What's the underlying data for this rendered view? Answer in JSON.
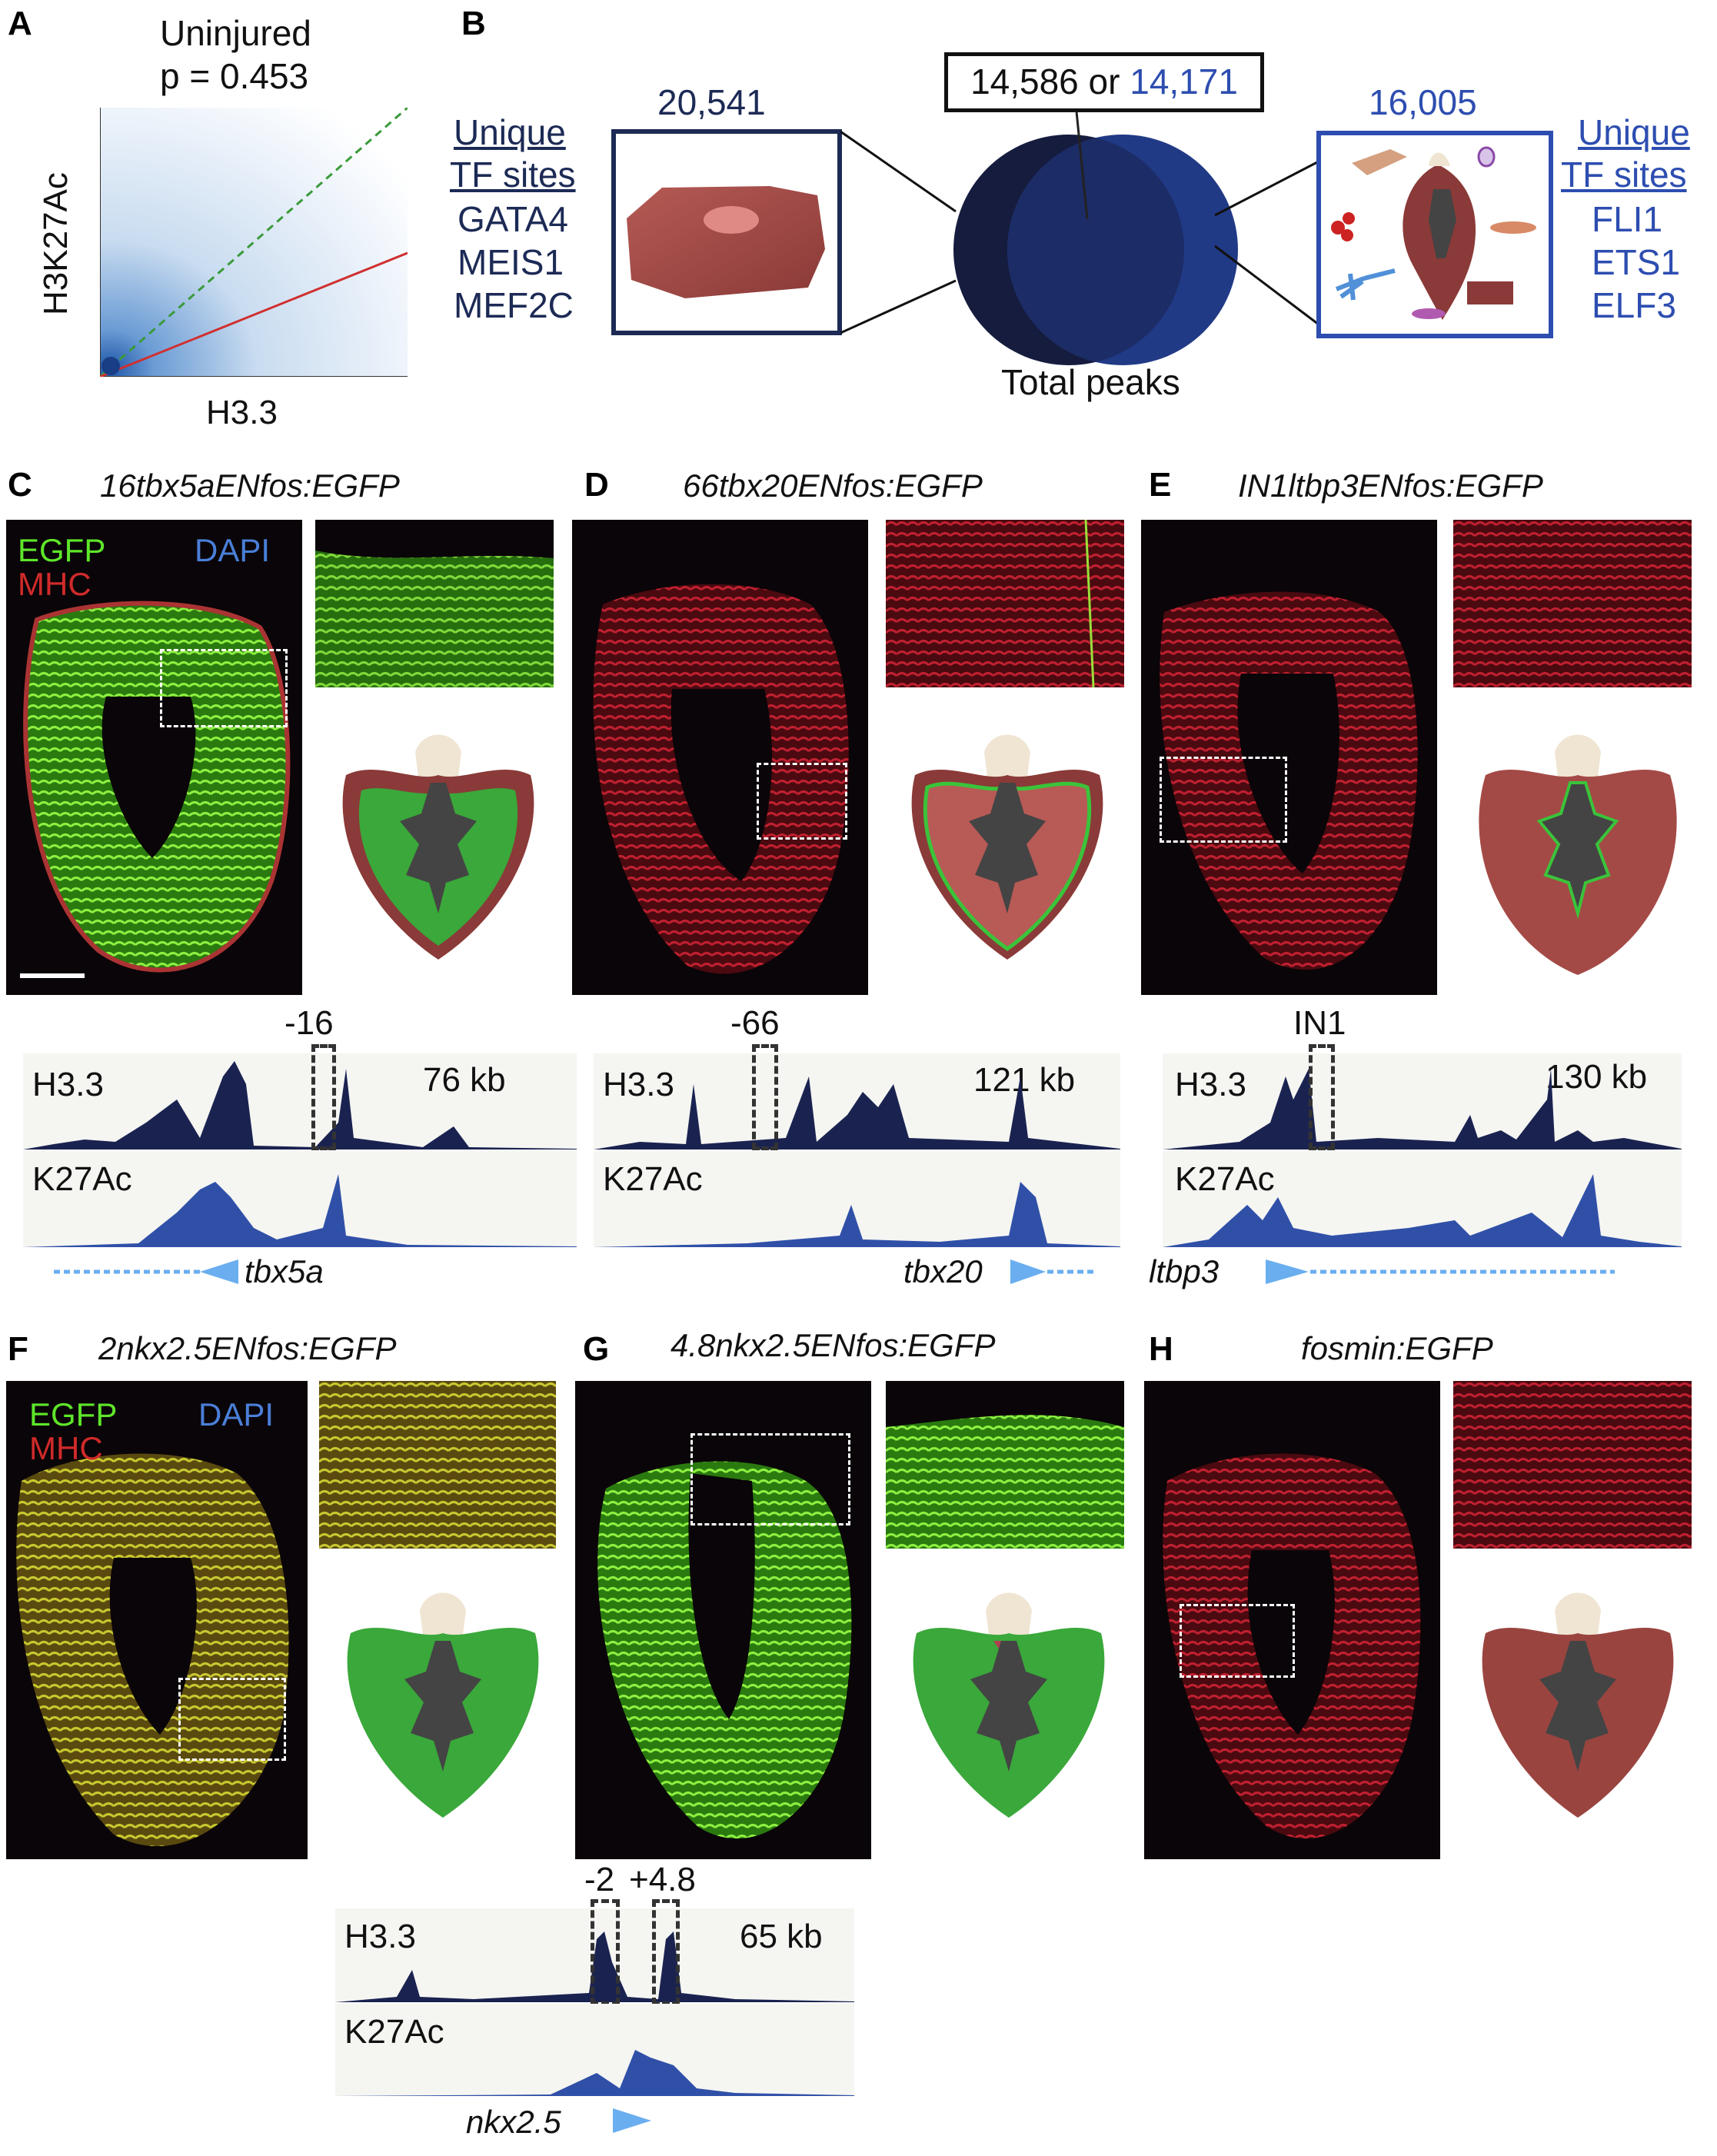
{
  "panels": {
    "A": {
      "label": "A",
      "title": "Uninjured",
      "pvalue": "p = 0.453",
      "xlabel": "H3.3",
      "ylabel": "H3K27Ac",
      "chart_data": {
        "type": "scatter",
        "title": "Uninjured",
        "subtitle": "p = 0.453",
        "xlabel": "H3.3",
        "ylabel": "H3K27Ac",
        "series": [
          {
            "name": "",
            "style": "density",
            "color": "#2a6cb8"
          },
          {
            "style": "dashed",
            "color": "#3a9a3a",
            "x": [
              0,
              1
            ],
            "y": [
              0,
              1
            ]
          },
          {
            "style": "solid",
            "color": "#d03030",
            "x": [
              0,
              1
            ],
            "y": [
              0,
              0.46
            ]
          }
        ],
        "xlim": [
          0,
          1
        ],
        "ylim": [
          0,
          1
        ]
      }
    },
    "B": {
      "label": "B",
      "left_count": "20,541",
      "center_box_a": "14,586",
      "center_box_or": " or ",
      "center_box_b": "14,171",
      "right_count": "16,005",
      "total_peaks": "Total peaks",
      "left_list": {
        "head1": "Unique",
        "head2": "TF sites",
        "items": [
          "GATA4",
          "MEIS1",
          "MEF2C"
        ]
      },
      "right_list": {
        "head1": "Unique",
        "head2": "TF sites",
        "items": [
          "FLI1",
          "ETS1",
          "ELF3"
        ]
      }
    },
    "C": {
      "label": "C",
      "title": "16tbx5aENfos:EGFP",
      "egfp": "EGFP",
      "dapi": "DAPI",
      "mhc": "MHC",
      "enhancer": "-16",
      "h33": "H3.3",
      "k27": "K27Ac",
      "size": "76 kb",
      "gene": "tbx5a"
    },
    "D": {
      "label": "D",
      "title": "66tbx20ENfos:EGFP",
      "enhancer": "-66",
      "h33": "H3.3",
      "k27": "K27Ac",
      "size": "121 kb",
      "gene": "tbx20"
    },
    "E": {
      "label": "E",
      "title": "IN1ltbp3ENfos:EGFP",
      "enhancer": "IN1",
      "h33": "H3.3",
      "k27": "K27Ac",
      "size": "130 kb",
      "gene": "ltbp3"
    },
    "F": {
      "label": "F",
      "title": "2nkx2.5ENfos:EGFP",
      "egfp": "EGFP",
      "dapi": "DAPI",
      "mhc": "MHC"
    },
    "G": {
      "label": "G",
      "title": "4.8nkx2.5ENfos:EGFP",
      "enhancer_a": "-2",
      "enhancer_b": "+4.8",
      "h33": "H3.3",
      "k27": "K27Ac",
      "size": "65 kb",
      "gene": "nkx2.5"
    },
    "H": {
      "label": "H",
      "title": "fosmin:EGFP"
    }
  },
  "colors": {
    "egfp": "#5ee62a",
    "dapi": "#4a7fd8",
    "mhc": "#d02a2a",
    "navy": "#1c2a55",
    "blue_text": "#2d4db0",
    "h33_track": "#1a2350",
    "k27_track": "#3050a8",
    "gene_arrow": "#6aaef0"
  }
}
